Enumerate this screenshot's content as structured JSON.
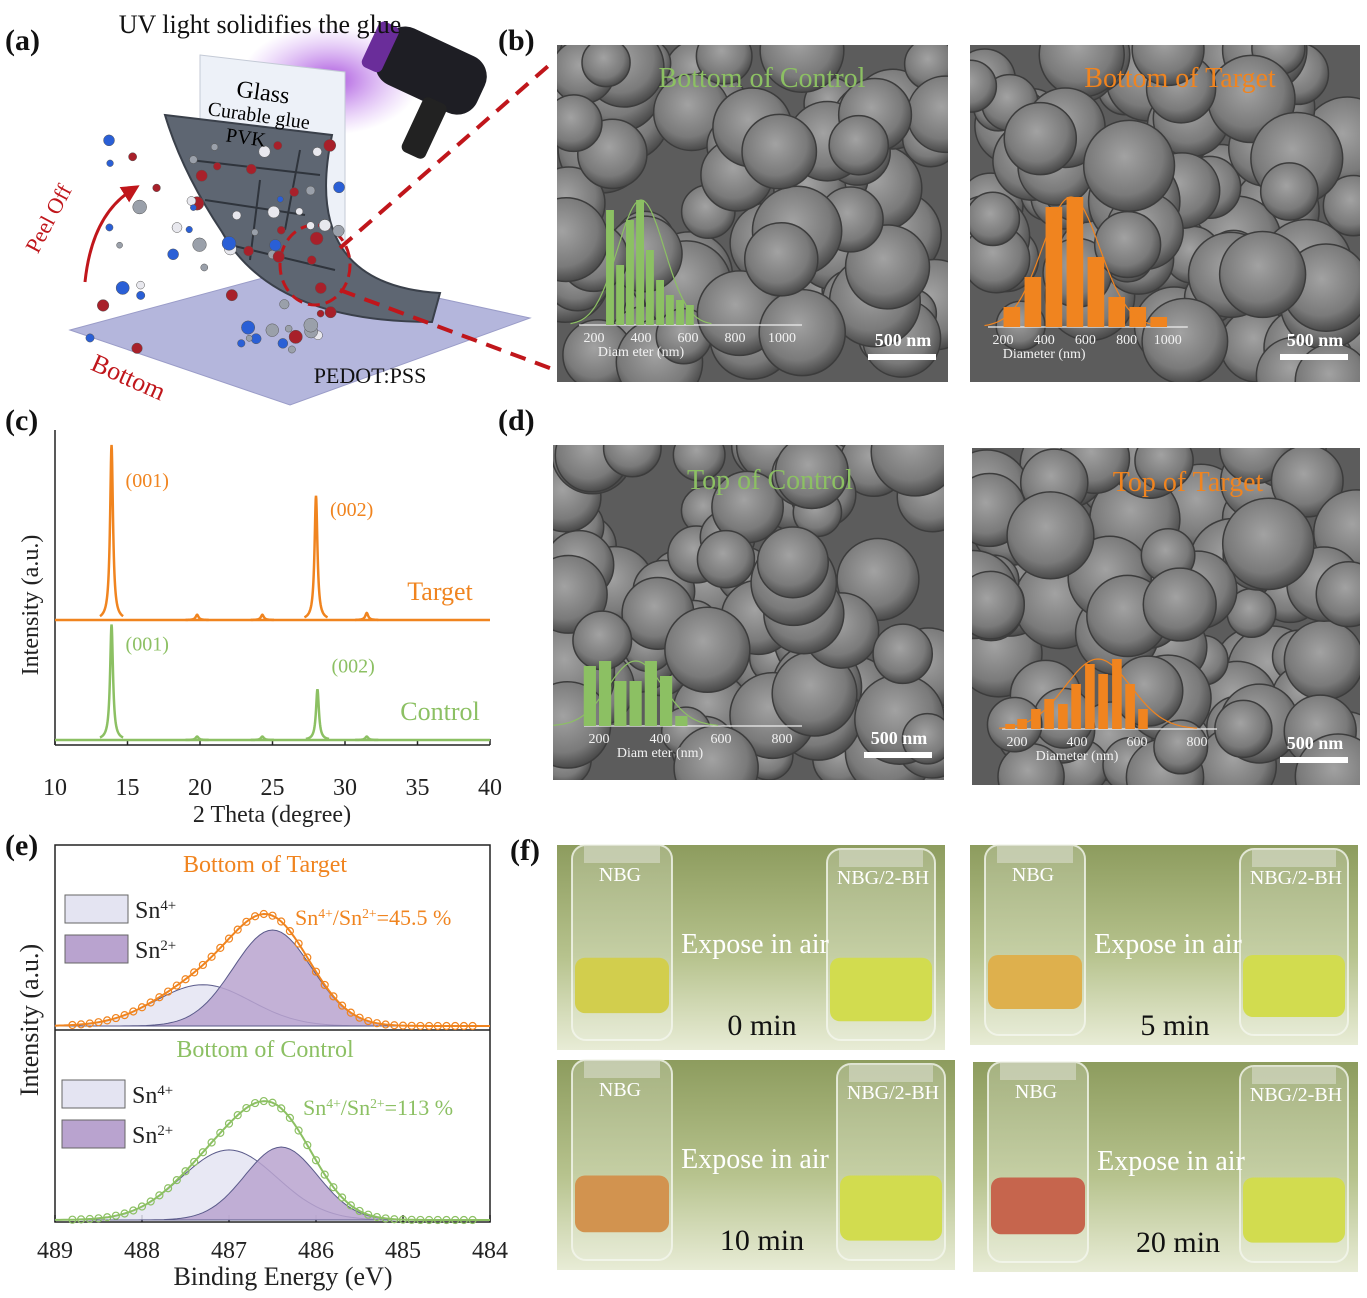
{
  "panels": {
    "a": {
      "label": "(a)",
      "title": "UV light solidifies the glue",
      "glass": "Glass",
      "glue": "Curable glue",
      "pvk": "PVK",
      "peel": "Peel Off",
      "bottom": "Bottom",
      "substrate": "PEDOT:PSS"
    },
    "b": {
      "label": "(b)",
      "images": [
        {
          "title": "Bottom of Control",
          "color": "#8cc063",
          "xticks": [
            200,
            400,
            600,
            800,
            1000
          ],
          "xlabel": "Diam eter (nm)",
          "scale_bar": "500 nm",
          "bar_x": [
            268,
            311,
            353,
            396,
            438,
            481,
            523,
            566,
            608
          ],
          "counts": [
            23,
            12,
            21,
            25,
            15,
            9,
            6,
            5,
            4
          ],
          "fit_mean": 400,
          "fit_sd": 100
        },
        {
          "title": "Bottom of Target",
          "color": "#f0841f",
          "xticks": [
            200,
            400,
            600,
            800,
            1000
          ],
          "xlabel": "Diameter (nm)",
          "scale_bar": "500 nm",
          "bar_x": [
            243,
            345,
            447,
            549,
            651,
            752,
            854,
            956
          ],
          "counts": [
            4,
            10,
            24,
            26,
            14,
            6,
            4,
            2
          ],
          "fit_mean": 530,
          "fit_sd": 140
        }
      ]
    },
    "c": {
      "label": "(c)",
      "type": "line",
      "xlabel": "2 Theta (degree)",
      "ylabel": "Intensity (a.u.)",
      "xlim": [
        10,
        40
      ],
      "xticks": [
        10,
        15,
        20,
        25,
        30,
        35,
        40
      ],
      "series": [
        {
          "name": "Target",
          "color": "#f0841f",
          "peak_x": [
            13.9,
            19.8,
            24.3,
            28.0,
            31.5
          ],
          "peak_height": [
            100,
            3,
            3,
            71,
            4
          ],
          "peak_labels": [
            "(001)",
            "(002)"
          ]
        },
        {
          "name": "Control",
          "color": "#8cc063",
          "peak_x": [
            13.9,
            19.8,
            24.3,
            28.1,
            31.5
          ],
          "peak_height": [
            66,
            2,
            2,
            29,
            2
          ],
          "peak_labels": [
            "(001)",
            "(002)"
          ]
        }
      ]
    },
    "d": {
      "label": "(d)",
      "images": [
        {
          "title": "Top of Control",
          "color": "#8cc063",
          "xticks": [
            200,
            400,
            600,
            800
          ],
          "xlabel": "Diam eter (nm)",
          "scale_bar": "500 nm",
          "bar_x": [
            170,
            220,
            270,
            320,
            370,
            420,
            470
          ],
          "counts": [
            12,
            13,
            9,
            9,
            13,
            10,
            2
          ],
          "fit_mean": 320,
          "fit_sd": 90
        },
        {
          "title": "Top of Target",
          "color": "#f0841f",
          "xticks": [
            200,
            400,
            600,
            800
          ],
          "xlabel": "Diameter (nm)",
          "scale_bar": "500 nm",
          "bar_x": [
            177,
            217,
            263,
            307,
            353,
            397,
            443,
            487,
            533,
            577,
            620
          ],
          "counts": [
            1,
            2,
            4,
            6,
            5,
            9,
            13,
            11,
            14,
            9,
            4
          ],
          "fit_mean": 470,
          "fit_sd": 110
        }
      ]
    },
    "e": {
      "label": "(e)",
      "xlabel": "Binding Energy (eV)",
      "ylabel": "Intensity (a.u.)",
      "xlim": [
        489,
        484
      ],
      "xticks": [
        489,
        488,
        487,
        486,
        485,
        484
      ],
      "panels": [
        {
          "title": "Bottom of Target",
          "color": "#f0841f",
          "ratio": [
            "Sn",
            "4+",
            "/Sn",
            "2+",
            "=45.5 %"
          ],
          "components": [
            {
              "name": [
                "Sn",
                "4+"
              ],
              "color": "#e4e4f2",
              "center": 487.3,
              "amp": 43,
              "sigma": 0.55
            },
            {
              "name": [
                "Sn",
                "2+"
              ],
              "color": "#b9a3cf",
              "center": 486.5,
              "amp": 100,
              "sigma": 0.45
            }
          ]
        },
        {
          "title": "Bottom of Control",
          "color": "#8cc063",
          "ratio": [
            "Sn",
            "4+",
            "/Sn",
            "2+",
            "=113 %"
          ],
          "components": [
            {
              "name": [
                "Sn",
                "4+"
              ],
              "color": "#e4e4f2",
              "center": 487.0,
              "amp": 73,
              "sigma": 0.55
            },
            {
              "name": [
                "Sn",
                "2+"
              ],
              "color": "#b9a3cf",
              "center": 486.4,
              "amp": 76,
              "sigma": 0.42
            }
          ]
        }
      ]
    },
    "f": {
      "label": "(f)",
      "photos": [
        {
          "left": "NBG",
          "right": "NBG/2-BH",
          "caption": "Expose in air",
          "time": "0 min",
          "nbg_color": "#c9c21a",
          "bh_color": "#c8d41c"
        },
        {
          "left": "NBG",
          "right": "NBG/2-BH",
          "caption": "Expose in air",
          "time": "5 min",
          "nbg_color": "#d89a1a",
          "bh_color": "#c8d41c"
        },
        {
          "left": "NBG",
          "right": "NBG/2-BH",
          "caption": "Expose in air",
          "time": "10 min",
          "nbg_color": "#c9731c",
          "bh_color": "#c8d41c"
        },
        {
          "left": "NBG",
          "right": "NBG/2-BH",
          "caption": "Expose in air",
          "time": "20 min",
          "nbg_color": "#b8361a",
          "bh_color": "#c8d41c"
        }
      ]
    }
  }
}
